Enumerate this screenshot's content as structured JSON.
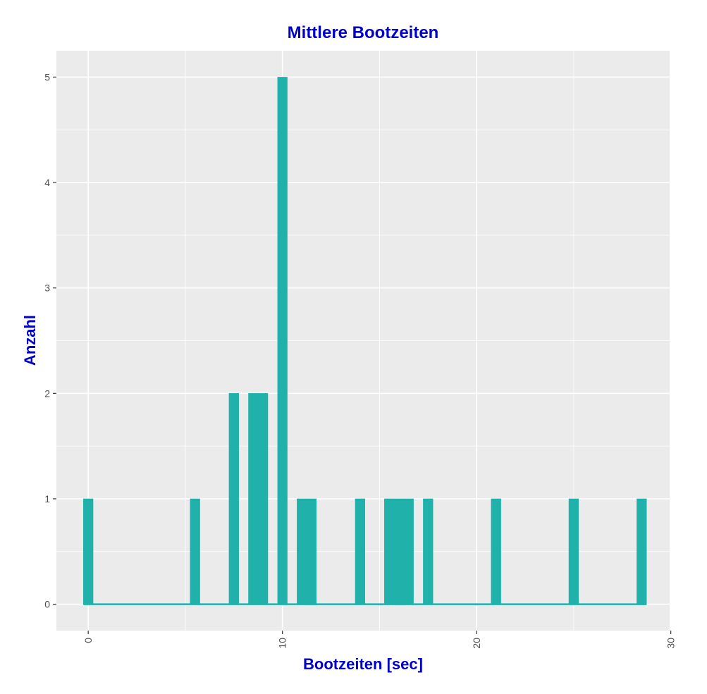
{
  "chart_data": {
    "type": "bar",
    "title": "Mittlere Bootzeiten",
    "xlabel": "Bootzeiten [sec]",
    "ylabel": "Anzahl",
    "xlim": [
      -1.64,
      29.94
    ],
    "ylim": [
      -0.25,
      5.25
    ],
    "x_ticks": [
      0,
      10,
      20,
      30
    ],
    "x_tick_labels": [
      "0",
      "10",
      "20",
      "30"
    ],
    "y_ticks": [
      0,
      1,
      2,
      3,
      4,
      5
    ],
    "y_tick_labels": [
      "0",
      "1",
      "2",
      "3",
      "4",
      "5"
    ],
    "bin_width": 0.5,
    "bins": [
      {
        "x": 0.0,
        "count": 1
      },
      {
        "x": 5.5,
        "count": 1
      },
      {
        "x": 7.5,
        "count": 2
      },
      {
        "x": 8.5,
        "count": 2
      },
      {
        "x": 9.0,
        "count": 2
      },
      {
        "x": 10.0,
        "count": 5
      },
      {
        "x": 11.0,
        "count": 1
      },
      {
        "x": 11.5,
        "count": 1
      },
      {
        "x": 14.0,
        "count": 1
      },
      {
        "x": 15.5,
        "count": 1
      },
      {
        "x": 16.0,
        "count": 1
      },
      {
        "x": 16.5,
        "count": 1
      },
      {
        "x": 17.5,
        "count": 1
      },
      {
        "x": 21.0,
        "count": 1
      },
      {
        "x": 25.0,
        "count": 1
      },
      {
        "x": 28.5,
        "count": 1
      }
    ],
    "range": [
      -0.25,
      28.75
    ],
    "grid": true,
    "legend": "none",
    "bar_color": "#20b2aa",
    "panel_color": "#ebebeb",
    "grid_color": "#ffffff",
    "title_color": "#0000cd"
  }
}
